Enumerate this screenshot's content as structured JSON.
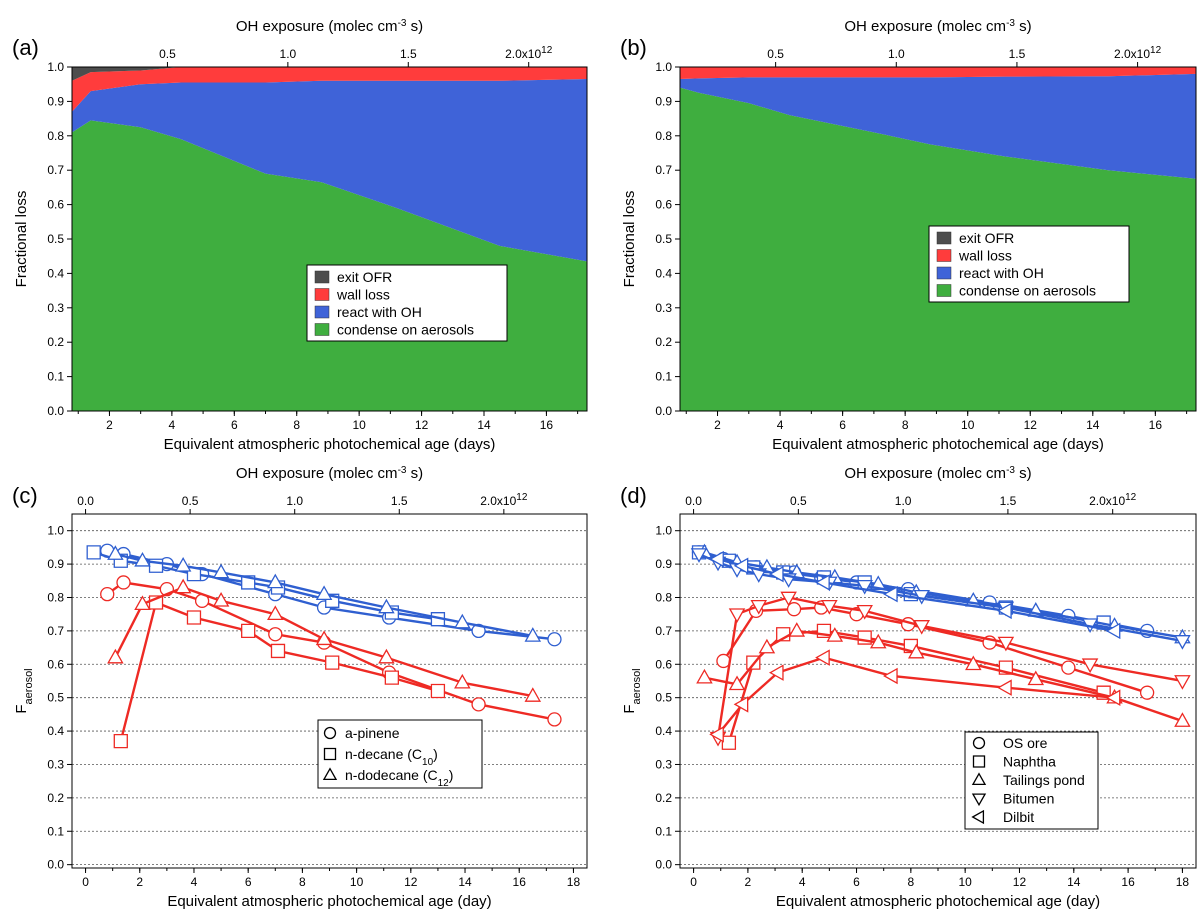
{
  "figure": {
    "panels": [
      "(a)",
      "(b)",
      "(c)",
      "(d)"
    ]
  },
  "colors": {
    "exit_ofr": "#4d4d4d",
    "wall_loss": "#ff3c3c",
    "react_oh": "#3f63d8",
    "condense": "#3fae3f",
    "blue_series": "#2f5fd0",
    "red_series": "#ee2a24"
  },
  "chart_data": [
    {
      "panel": "(a)",
      "type": "area",
      "xlabel": "Equivalent atmospheric photochemical age (days)",
      "ylabel": "Fractional loss",
      "top_xlabel": "OH exposure (molec cm^-3 s)",
      "top_ticks": [
        "0.5",
        "1.0",
        "1.5",
        "2.0x10^12"
      ],
      "top_tick_values": [
        0.5,
        1.0,
        1.5,
        2.0
      ],
      "top_scale_per_day": 0.1296,
      "xlim": [
        0.8,
        17.3
      ],
      "ylim": [
        0,
        1.0
      ],
      "xticks": [
        2,
        4,
        6,
        8,
        10,
        12,
        14,
        16
      ],
      "yticks": [
        0.0,
        0.1,
        0.2,
        0.3,
        0.4,
        0.5,
        0.6,
        0.7,
        0.8,
        0.9,
        1.0
      ],
      "grid": false,
      "legend_position": "center-right",
      "x": [
        0.8,
        1.4,
        3.0,
        4.3,
        7.0,
        8.8,
        11.2,
        14.5,
        17.3
      ],
      "series": [
        {
          "name": "condense on aerosols",
          "values": [
            0.81,
            0.845,
            0.825,
            0.79,
            0.69,
            0.665,
            0.59,
            0.48,
            0.435
          ]
        },
        {
          "name": "react with OH",
          "values": [
            0.06,
            0.085,
            0.125,
            0.165,
            0.265,
            0.295,
            0.37,
            0.48,
            0.53
          ]
        },
        {
          "name": "wall loss",
          "values": [
            0.09,
            0.055,
            0.04,
            0.045,
            0.045,
            0.04,
            0.04,
            0.04,
            0.035
          ]
        },
        {
          "name": "exit OFR",
          "values": [
            0.04,
            0.015,
            0.01,
            0.0,
            0.0,
            0.0,
            0.0,
            0.0,
            0.0
          ]
        }
      ]
    },
    {
      "panel": "(b)",
      "type": "area",
      "xlabel": "Equivalent atmospheric photochemical age (days)",
      "ylabel": "Fractional loss",
      "top_xlabel": "OH exposure (molec cm^-3 s)",
      "top_ticks": [
        "0.5",
        "1.0",
        "1.5",
        "2.0x10^12"
      ],
      "top_tick_values": [
        0.5,
        1.0,
        1.5,
        2.0
      ],
      "top_scale_per_day": 0.1296,
      "xlim": [
        0.8,
        17.3
      ],
      "ylim": [
        0,
        1.0
      ],
      "xticks": [
        2,
        4,
        6,
        8,
        10,
        12,
        14,
        16
      ],
      "yticks": [
        0.0,
        0.1,
        0.2,
        0.3,
        0.4,
        0.5,
        0.6,
        0.7,
        0.8,
        0.9,
        1.0
      ],
      "grid": false,
      "legend_position": "center-right",
      "x": [
        0.8,
        1.4,
        3.0,
        4.3,
        7.0,
        8.8,
        11.2,
        14.5,
        17.3
      ],
      "series": [
        {
          "name": "condense on aerosols",
          "values": [
            0.94,
            0.925,
            0.895,
            0.86,
            0.81,
            0.775,
            0.74,
            0.7,
            0.675
          ]
        },
        {
          "name": "react with OH",
          "values": [
            0.025,
            0.042,
            0.075,
            0.11,
            0.16,
            0.195,
            0.232,
            0.273,
            0.305
          ]
        },
        {
          "name": "wall loss",
          "values": [
            0.035,
            0.033,
            0.03,
            0.03,
            0.03,
            0.03,
            0.028,
            0.027,
            0.02
          ]
        },
        {
          "name": "exit OFR",
          "values": [
            0.0,
            0.0,
            0.0,
            0.0,
            0.0,
            0.0,
            0.0,
            0.0,
            0.0
          ]
        }
      ]
    },
    {
      "panel": "(c)",
      "type": "line",
      "xlabel": "Equivalent atmospheric photochemical age (day)",
      "ylabel": "F_aerosol",
      "top_xlabel": "OH exposure (molec cm^-3 s)",
      "top_ticks": [
        "0.0",
        "0.5",
        "1.0",
        "1.5",
        "2.0x10^12"
      ],
      "top_tick_values": [
        0,
        0.5,
        1.0,
        1.5,
        2.0
      ],
      "top_scale_per_day": 0.1296,
      "xlim": [
        -0.5,
        18.5
      ],
      "ylim": [
        -0.01,
        1.05
      ],
      "xticks": [
        0,
        2,
        4,
        6,
        8,
        10,
        12,
        14,
        16,
        18
      ],
      "yticks": [
        0.0,
        0.1,
        0.2,
        0.3,
        0.4,
        0.5,
        0.6,
        0.7,
        0.8,
        0.9,
        1.0
      ],
      "grid": true,
      "legend_position": "bottom-center",
      "legend": [
        {
          "label": "a-pinene",
          "marker": "circle"
        },
        {
          "label": "n-decane (C",
          "sub": "10",
          "after": ")",
          "marker": "square"
        },
        {
          "label": "n-dodecane (C",
          "sub": "12",
          "after": ")",
          "marker": "triangle-up"
        }
      ],
      "series": [
        {
          "name": "a-pinene",
          "color": "blue",
          "marker": "circle",
          "x": [
            0.8,
            1.4,
            3.0,
            4.3,
            7.0,
            8.8,
            11.2,
            14.5,
            17.3
          ],
          "y": [
            0.94,
            0.93,
            0.9,
            0.87,
            0.81,
            0.77,
            0.74,
            0.7,
            0.675
          ]
        },
        {
          "name": "a-pinene",
          "color": "red",
          "marker": "circle",
          "x": [
            0.8,
            1.4,
            3.0,
            4.3,
            7.0,
            8.8,
            11.2,
            14.5,
            17.3
          ],
          "y": [
            0.81,
            0.845,
            0.825,
            0.79,
            0.69,
            0.665,
            0.575,
            0.48,
            0.435
          ]
        },
        {
          "name": "n-decane (C10)",
          "color": "blue",
          "marker": "square",
          "x": [
            0.3,
            1.3,
            2.6,
            4.0,
            6.0,
            7.1,
            9.1,
            11.3,
            13.0
          ],
          "y": [
            0.935,
            0.91,
            0.895,
            0.87,
            0.845,
            0.83,
            0.79,
            0.755,
            0.735
          ]
        },
        {
          "name": "n-decane (C10)",
          "color": "red",
          "marker": "square",
          "x": [
            1.3,
            2.6,
            4.0,
            6.0,
            7.1,
            9.1,
            11.3,
            13.0
          ],
          "y": [
            0.37,
            0.785,
            0.74,
            0.7,
            0.64,
            0.605,
            0.56,
            0.52
          ]
        },
        {
          "name": "n-dodecane (C12)",
          "color": "blue",
          "marker": "triangle-up",
          "x": [
            1.1,
            2.1,
            3.6,
            5.0,
            7.0,
            8.8,
            11.1,
            13.9,
            16.5
          ],
          "y": [
            0.93,
            0.91,
            0.895,
            0.875,
            0.845,
            0.81,
            0.77,
            0.725,
            0.685
          ]
        },
        {
          "name": "n-dodecane (C12)",
          "color": "red",
          "marker": "triangle-up",
          "x": [
            1.1,
            2.1,
            3.6,
            5.0,
            7.0,
            8.8,
            11.1,
            13.9,
            16.5
          ],
          "y": [
            0.62,
            0.78,
            0.83,
            0.79,
            0.75,
            0.675,
            0.62,
            0.545,
            0.505
          ]
        }
      ]
    },
    {
      "panel": "(d)",
      "type": "line",
      "xlabel": "Equivalent atmospheric photochemical age (day)",
      "ylabel": "F_aerosol",
      "top_xlabel": "OH exposure (molec cm^-3 s)",
      "top_ticks": [
        "0.0",
        "0.5",
        "1.0",
        "1.5",
        "2.0x10^12"
      ],
      "top_tick_values": [
        0,
        0.5,
        1.0,
        1.5,
        2.0
      ],
      "top_scale_per_day": 0.1296,
      "xlim": [
        -0.5,
        18.5
      ],
      "ylim": [
        -0.01,
        1.05
      ],
      "xticks": [
        0,
        2,
        4,
        6,
        8,
        10,
        12,
        14,
        16,
        18
      ],
      "yticks": [
        0.0,
        0.1,
        0.2,
        0.3,
        0.4,
        0.5,
        0.6,
        0.7,
        0.8,
        0.9,
        1.0
      ],
      "grid": true,
      "legend_position": "bottom-right",
      "legend": [
        {
          "label": "OS ore",
          "marker": "circle"
        },
        {
          "label": "Naphtha",
          "marker": "square"
        },
        {
          "label": "Tailings pond",
          "marker": "triangle-up"
        },
        {
          "label": "Bitumen",
          "marker": "triangle-down"
        },
        {
          "label": "Dilbit",
          "marker": "triangle-left"
        }
      ],
      "series": [
        {
          "name": "OS ore",
          "color": "blue",
          "marker": "circle",
          "x": [
            0.2,
            1.1,
            2.3,
            3.7,
            4.7,
            6.0,
            7.9,
            10.9,
            13.8,
            16.7
          ],
          "y": [
            0.935,
            0.915,
            0.89,
            0.875,
            0.86,
            0.845,
            0.825,
            0.785,
            0.745,
            0.7
          ]
        },
        {
          "name": "OS ore",
          "color": "red",
          "marker": "circle",
          "x": [
            1.1,
            2.3,
            3.7,
            4.7,
            6.0,
            7.9,
            10.9,
            13.8,
            16.7
          ],
          "y": [
            0.61,
            0.76,
            0.765,
            0.77,
            0.75,
            0.72,
            0.665,
            0.59,
            0.515
          ]
        },
        {
          "name": "Naphtha",
          "color": "blue",
          "marker": "square",
          "x": [
            0.2,
            1.3,
            2.2,
            3.3,
            4.8,
            6.3,
            8.0,
            11.5,
            15.1
          ],
          "y": [
            0.935,
            0.91,
            0.89,
            0.875,
            0.86,
            0.845,
            0.81,
            0.77,
            0.725
          ]
        },
        {
          "name": "Naphtha",
          "color": "red",
          "marker": "square",
          "x": [
            1.3,
            2.2,
            3.3,
            4.8,
            6.3,
            8.0,
            11.5,
            15.1
          ],
          "y": [
            0.365,
            0.605,
            0.69,
            0.7,
            0.68,
            0.655,
            0.59,
            0.515
          ]
        },
        {
          "name": "Tailings pond",
          "color": "blue",
          "marker": "triangle-up",
          "x": [
            0.4,
            1.6,
            2.7,
            3.8,
            5.2,
            6.8,
            8.2,
            10.3,
            12.6,
            15.5,
            18.0
          ],
          "y": [
            0.935,
            0.905,
            0.89,
            0.875,
            0.86,
            0.84,
            0.815,
            0.79,
            0.76,
            0.715,
            0.68
          ]
        },
        {
          "name": "Tailings pond",
          "color": "red",
          "marker": "triangle-up",
          "x": [
            0.4,
            1.6,
            2.7,
            3.8,
            5.2,
            6.8,
            8.2,
            10.3,
            12.6,
            15.5,
            18.0
          ],
          "y": [
            0.56,
            0.54,
            0.65,
            0.7,
            0.685,
            0.665,
            0.635,
            0.6,
            0.555,
            0.5,
            0.43
          ]
        },
        {
          "name": "Bitumen",
          "color": "blue",
          "marker": "triangle-down",
          "x": [
            0.2,
            0.9,
            1.6,
            2.4,
            3.5,
            5.0,
            6.3,
            8.4,
            11.5,
            14.6,
            18.0
          ],
          "y": [
            0.93,
            0.905,
            0.885,
            0.87,
            0.855,
            0.845,
            0.835,
            0.805,
            0.77,
            0.72,
            0.67
          ]
        },
        {
          "name": "Bitumen",
          "color": "red",
          "marker": "triangle-down",
          "x": [
            0.9,
            1.6,
            2.4,
            3.5,
            5.0,
            6.3,
            8.4,
            11.5,
            14.6,
            18.0
          ],
          "y": [
            0.38,
            0.75,
            0.775,
            0.8,
            0.775,
            0.76,
            0.715,
            0.665,
            0.6,
            0.55
          ]
        },
        {
          "name": "Dilbit",
          "color": "blue",
          "marker": "triangle-left",
          "x": [
            0.9,
            1.8,
            3.1,
            4.8,
            7.3,
            11.5,
            15.5
          ],
          "y": [
            0.915,
            0.895,
            0.87,
            0.845,
            0.81,
            0.76,
            0.7
          ]
        },
        {
          "name": "Dilbit",
          "color": "red",
          "marker": "triangle-left",
          "x": [
            0.9,
            1.8,
            3.1,
            4.8,
            7.3,
            11.5,
            15.5
          ],
          "y": [
            0.39,
            0.48,
            0.575,
            0.62,
            0.565,
            0.53,
            0.5
          ]
        }
      ]
    }
  ]
}
